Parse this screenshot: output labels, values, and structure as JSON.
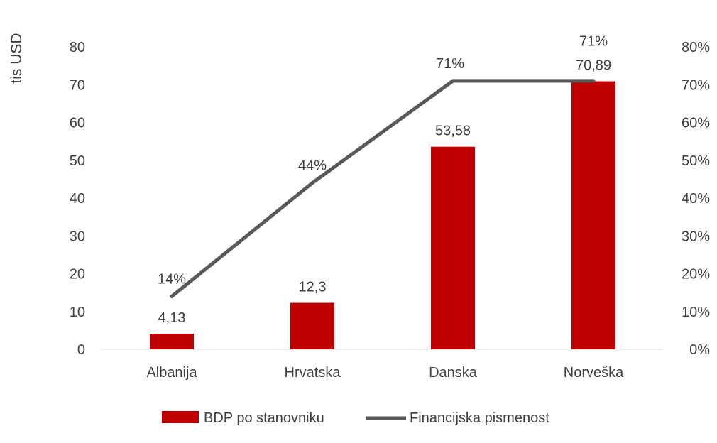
{
  "chart_data": {
    "type": "bar+line",
    "categories": [
      "Albanija",
      "Hrvatska",
      "Danska",
      "Norveška"
    ],
    "series": [
      {
        "name": "BDP po stanovniku",
        "type": "bar",
        "axis": "left",
        "values": [
          4.13,
          12.3,
          53.58,
          70.89
        ],
        "labels": [
          "4,13",
          "12,3",
          "53,58",
          "70,89"
        ],
        "color": "#C00000"
      },
      {
        "name": "Financijska pismenost",
        "type": "line",
        "axis": "right",
        "values": [
          14,
          44,
          71,
          71
        ],
        "labels": [
          "14%",
          "44%",
          "71%",
          "71%"
        ],
        "color": "#595959"
      }
    ],
    "ylabel": "tis USD",
    "ylim": [
      0,
      80
    ],
    "yticks": [
      "0",
      "10",
      "20",
      "30",
      "40",
      "50",
      "60",
      "70",
      "80"
    ],
    "y2lim": [
      0,
      80
    ],
    "y2ticks": [
      "0%",
      "10%",
      "20%",
      "30%",
      "40%",
      "50%",
      "60%",
      "70%",
      "80%"
    ],
    "grid": false,
    "legend": "bottom"
  }
}
